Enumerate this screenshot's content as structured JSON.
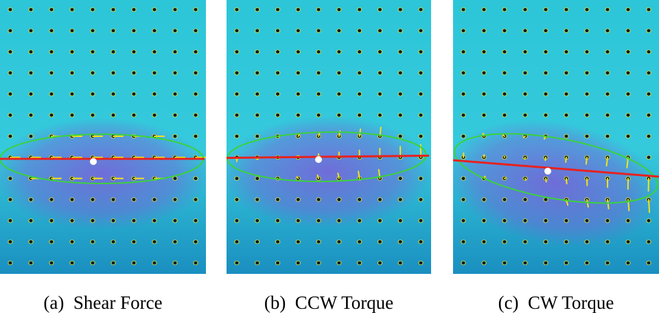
{
  "panels": [
    {
      "caption": "(a)  Shear Force",
      "contact_line": {
        "from": [
          -10,
          0.0
        ],
        "to": [
          10,
          0.0
        ]
      },
      "displacement": "shear"
    },
    {
      "caption": "(b)  CCW Torque",
      "contact_line": {
        "from": [
          -10,
          0.2
        ],
        "to": [
          10,
          -0.2
        ]
      },
      "displacement": "ccw"
    },
    {
      "caption": "(c)  CW Torque",
      "contact_line": {
        "from": [
          -10,
          -1.2
        ],
        "to": [
          10,
          1.2
        ]
      },
      "displacement": "cw"
    }
  ],
  "colors": {
    "gel_base": "#2cc6d8",
    "gel_deep": "#1a8fc0",
    "contact_tint": "#7a5fd8",
    "marker": "#0b1a2a",
    "marker_rim": "#d8e03a",
    "vector": "#f2e21b",
    "ellipse": "#3bd23b",
    "line": "#e8211e",
    "center": "#ffffff"
  }
}
